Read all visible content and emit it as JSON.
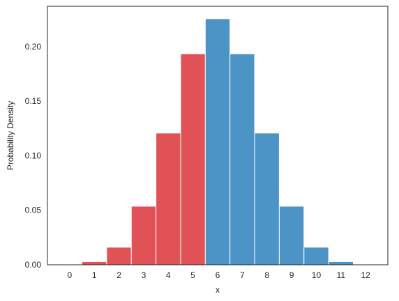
{
  "chart_data": {
    "type": "bar",
    "title": "",
    "xlabel": "x",
    "ylabel": "Probability Density",
    "categories": [
      "0",
      "1",
      "2",
      "3",
      "4",
      "5",
      "6",
      "7",
      "8",
      "9",
      "10",
      "11",
      "12"
    ],
    "x": [
      0,
      1,
      2,
      3,
      4,
      5,
      6,
      7,
      8,
      9,
      10,
      11,
      12
    ],
    "values": [
      0.0002,
      0.0029,
      0.0161,
      0.0537,
      0.1208,
      0.1934,
      0.2256,
      0.1934,
      0.1208,
      0.0537,
      0.0161,
      0.0029,
      0.0002
    ],
    "bar_colors": [
      "#e05255",
      "#e05255",
      "#e05255",
      "#e05255",
      "#e05255",
      "#e05255",
      "#4c94c6",
      "#4c94c6",
      "#4c94c6",
      "#4c94c6",
      "#4c94c6",
      "#4c94c6",
      "#4c94c6"
    ],
    "xlim": [
      -0.9,
      12.9
    ],
    "ylim": [
      0,
      0.237
    ],
    "yticks": [
      0.0,
      0.05,
      0.1,
      0.15,
      0.2
    ],
    "ytick_labels": [
      "0.00",
      "0.05",
      "0.10",
      "0.15",
      "0.20"
    ],
    "grid": false,
    "legend": false
  }
}
